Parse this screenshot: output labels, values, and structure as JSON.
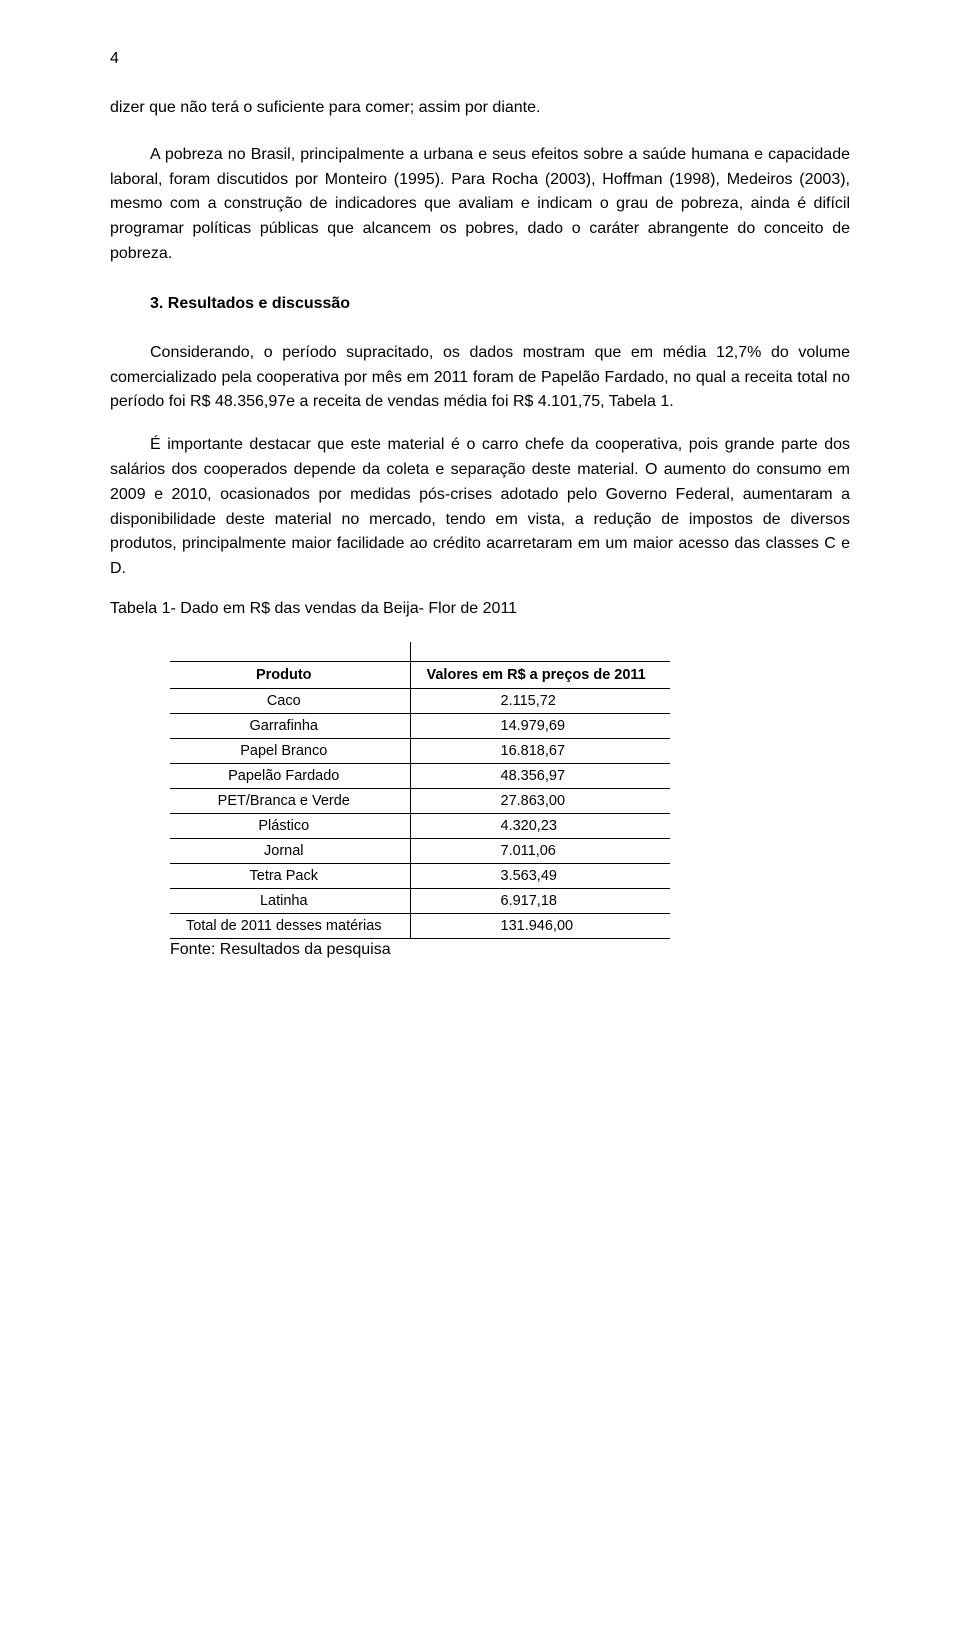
{
  "page_number": "4",
  "paragraphs": {
    "p1": "dizer que não terá o suficiente para comer; assim por diante.",
    "p2": "A pobreza no Brasil, principalmente a urbana e seus efeitos sobre a saúde humana e capacidade laboral, foram discutidos por Monteiro (1995). Para Rocha (2003), Hoffman (1998), Medeiros (2003), mesmo com a construção de indicadores que avaliam e indicam o grau de pobreza, ainda é difícil programar políticas públicas que alcancem os pobres, dado o caráter abrangente do conceito de pobreza."
  },
  "section_heading": "3. Resultados e discussão",
  "body": {
    "b1": "Considerando, o período supracitado, os dados mostram que em média 12,7% do volume comercializado pela cooperativa por mês em 2011 foram de Papelão Fardado, no qual a receita total no período foi R$ 48.356,97e a receita de vendas média foi R$ 4.101,75, Tabela 1.",
    "b2": "É importante destacar que este material é o carro chefe da cooperativa, pois grande parte dos salários dos cooperados depende da coleta e separação deste material. O aumento do consumo em 2009 e 2010, ocasionados por medidas pós-crises adotado pelo Governo Federal, aumentaram a disponibilidade deste material no mercado, tendo em vista, a redução de impostos de diversos produtos, principalmente maior facilidade ao crédito acarretaram em um maior acesso das classes C e D."
  },
  "table": {
    "caption": "Tabela 1- Dado em R$ das vendas da Beija- Flor de 2011",
    "columns": [
      "Produto",
      "Valores em R$ a preços de 2011"
    ],
    "rows": [
      [
        "Caco",
        "2.115,72"
      ],
      [
        "Garrafinha",
        "14.979,69"
      ],
      [
        "Papel Branco",
        "16.818,67"
      ],
      [
        "Papelão Fardado",
        "48.356,97"
      ],
      [
        "PET/Branca e Verde",
        "27.863,00"
      ],
      [
        "Plástico",
        "4.320,23"
      ],
      [
        "Jornal",
        "7.011,06"
      ],
      [
        "Tetra Pack",
        "3.563,49"
      ],
      [
        "Latinha",
        "6.917,18"
      ],
      [
        "Total de 2011 desses matérias",
        "131.946,00"
      ]
    ],
    "source": "Fonte: Resultados da pesquisa"
  }
}
